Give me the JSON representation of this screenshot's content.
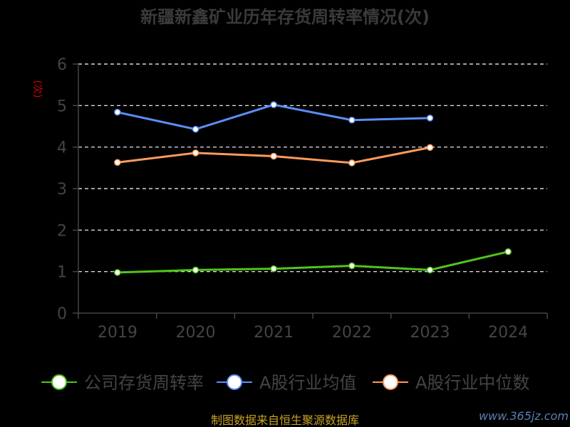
{
  "chart_data": {
    "type": "line",
    "title": "新疆新鑫矿业历年存货周转率情况(次)",
    "ylabel": "(次)",
    "categories": [
      "2019",
      "2020",
      "2021",
      "2022",
      "2023",
      "2024"
    ],
    "yticks": [
      "0",
      "1",
      "2",
      "3",
      "4",
      "5",
      "6"
    ],
    "ylim": [
      0,
      6
    ],
    "grid": true,
    "legend_position": "bottom",
    "series": [
      {
        "name": "公司存货周转率",
        "color": "#52c41a",
        "values": [
          0.98,
          1.04,
          1.07,
          1.14,
          1.04,
          1.48
        ]
      },
      {
        "name": "A股行业均值",
        "color": "#5b8ff9",
        "values": [
          4.84,
          4.43,
          5.02,
          4.65,
          4.7,
          null
        ]
      },
      {
        "name": "A股行业中位数",
        "color": "#ff9a5c",
        "values": [
          3.63,
          3.86,
          3.78,
          3.62,
          3.99,
          null
        ]
      }
    ]
  },
  "footer": {
    "source": "制图数据来自恒生聚源数据库",
    "watermark": "www.365jz.com"
  }
}
